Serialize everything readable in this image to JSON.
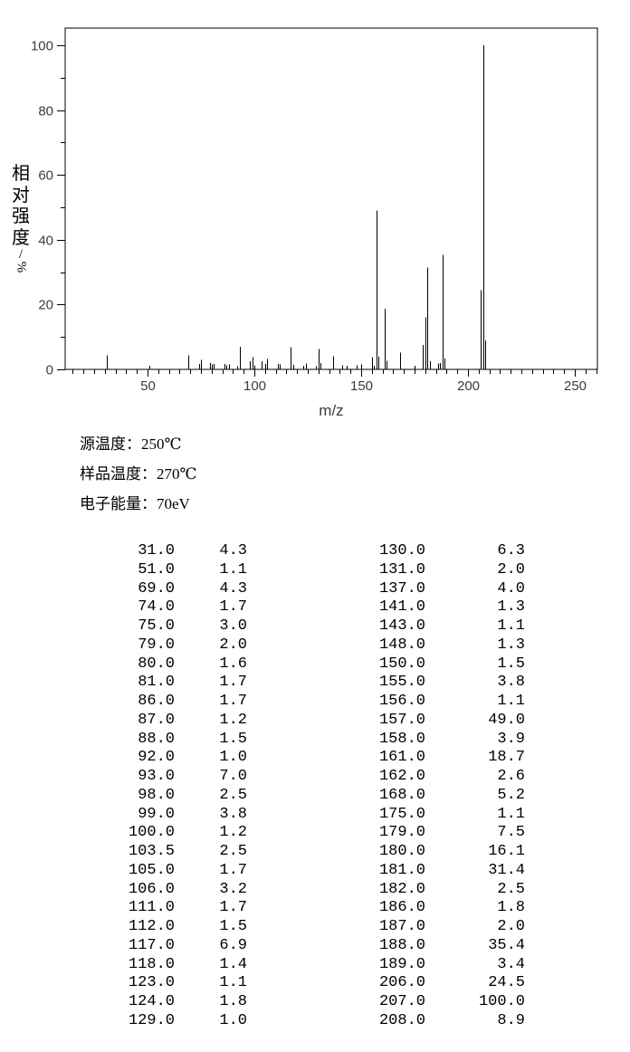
{
  "page": {
    "background": "#ffffff",
    "foreground": "#000000"
  },
  "chart_data": {
    "type": "bar",
    "subtype": "mass-spectrum-sticks",
    "title": "",
    "xlabel": "m/z",
    "ylabel": "相对强度/%",
    "xlim": [
      11.4,
      260.6
    ],
    "ylim": [
      0,
      105.3
    ],
    "x_major_ticks": [
      50,
      100,
      150,
      200,
      250
    ],
    "x_minor_step": 5,
    "y_major_ticks": [
      0,
      20,
      40,
      60,
      80,
      100
    ],
    "y_minor_step": 10,
    "grid": "off",
    "legend": "none",
    "axis_color": "#3c3c3c",
    "frame_color": "#000000",
    "bar_color": "#000000",
    "points": [
      [
        31.0,
        4.3
      ],
      [
        51.0,
        1.1
      ],
      [
        69.0,
        4.3
      ],
      [
        74.0,
        1.7
      ],
      [
        75.0,
        3.0
      ],
      [
        79.0,
        2.0
      ],
      [
        80.0,
        1.6
      ],
      [
        81.0,
        1.7
      ],
      [
        86.0,
        1.7
      ],
      [
        87.0,
        1.2
      ],
      [
        88.0,
        1.5
      ],
      [
        92.0,
        1.0
      ],
      [
        93.0,
        7.0
      ],
      [
        98.0,
        2.5
      ],
      [
        99.0,
        3.8
      ],
      [
        100.0,
        1.2
      ],
      [
        103.5,
        2.5
      ],
      [
        105.0,
        1.7
      ],
      [
        106.0,
        3.2
      ],
      [
        111.0,
        1.7
      ],
      [
        112.0,
        1.5
      ],
      [
        117.0,
        6.9
      ],
      [
        118.0,
        1.4
      ],
      [
        123.0,
        1.1
      ],
      [
        124.0,
        1.8
      ],
      [
        129.0,
        1.0
      ],
      [
        130.0,
        6.3
      ],
      [
        131.0,
        2.0
      ],
      [
        137.0,
        4.0
      ],
      [
        141.0,
        1.3
      ],
      [
        143.0,
        1.1
      ],
      [
        148.0,
        1.3
      ],
      [
        150.0,
        1.5
      ],
      [
        155.0,
        3.8
      ],
      [
        156.0,
        1.1
      ],
      [
        157.0,
        49.0
      ],
      [
        158.0,
        3.9
      ],
      [
        161.0,
        18.7
      ],
      [
        162.0,
        2.6
      ],
      [
        168.0,
        5.2
      ],
      [
        175.0,
        1.1
      ],
      [
        179.0,
        7.5
      ],
      [
        180.0,
        16.1
      ],
      [
        181.0,
        31.4
      ],
      [
        182.0,
        2.5
      ],
      [
        186.0,
        1.8
      ],
      [
        187.0,
        2.0
      ],
      [
        188.0,
        35.4
      ],
      [
        189.0,
        3.4
      ],
      [
        206.0,
        24.5
      ],
      [
        207.0,
        100.0
      ],
      [
        208.0,
        8.9
      ]
    ]
  },
  "conditions": {
    "lines": [
      "源温度：250℃",
      "样品温度：270℃",
      "电子能量：70eV"
    ]
  },
  "peak_table": {
    "left_rows": [
      [
        "31.0",
        "4.3"
      ],
      [
        "51.0",
        "1.1"
      ],
      [
        "69.0",
        "4.3"
      ],
      [
        "74.0",
        "1.7"
      ],
      [
        "75.0",
        "3.0"
      ],
      [
        "79.0",
        "2.0"
      ],
      [
        "80.0",
        "1.6"
      ],
      [
        "81.0",
        "1.7"
      ],
      [
        "86.0",
        "1.7"
      ],
      [
        "87.0",
        "1.2"
      ],
      [
        "88.0",
        "1.5"
      ],
      [
        "92.0",
        "1.0"
      ],
      [
        "93.0",
        "7.0"
      ],
      [
        "98.0",
        "2.5"
      ],
      [
        "99.0",
        "3.8"
      ],
      [
        "100.0",
        "1.2"
      ],
      [
        "103.5",
        "2.5"
      ],
      [
        "105.0",
        "1.7"
      ],
      [
        "106.0",
        "3.2"
      ],
      [
        "111.0",
        "1.7"
      ],
      [
        "112.0",
        "1.5"
      ],
      [
        "117.0",
        "6.9"
      ],
      [
        "118.0",
        "1.4"
      ],
      [
        "123.0",
        "1.1"
      ],
      [
        "124.0",
        "1.8"
      ],
      [
        "129.0",
        "1.0"
      ]
    ],
    "right_rows": [
      [
        "130.0",
        "6.3"
      ],
      [
        "131.0",
        "2.0"
      ],
      [
        "137.0",
        "4.0"
      ],
      [
        "141.0",
        "1.3"
      ],
      [
        "143.0",
        "1.1"
      ],
      [
        "148.0",
        "1.3"
      ],
      [
        "150.0",
        "1.5"
      ],
      [
        "155.0",
        "3.8"
      ],
      [
        "156.0",
        "1.1"
      ],
      [
        "157.0",
        "49.0"
      ],
      [
        "158.0",
        "3.9"
      ],
      [
        "161.0",
        "18.7"
      ],
      [
        "162.0",
        "2.6"
      ],
      [
        "168.0",
        "5.2"
      ],
      [
        "175.0",
        "1.1"
      ],
      [
        "179.0",
        "7.5"
      ],
      [
        "180.0",
        "16.1"
      ],
      [
        "181.0",
        "31.4"
      ],
      [
        "182.0",
        "2.5"
      ],
      [
        "186.0",
        "1.8"
      ],
      [
        "187.0",
        "2.0"
      ],
      [
        "188.0",
        "35.4"
      ],
      [
        "189.0",
        "3.4"
      ],
      [
        "206.0",
        "24.5"
      ],
      [
        "207.0",
        "100.0"
      ],
      [
        "208.0",
        "8.9"
      ]
    ]
  }
}
